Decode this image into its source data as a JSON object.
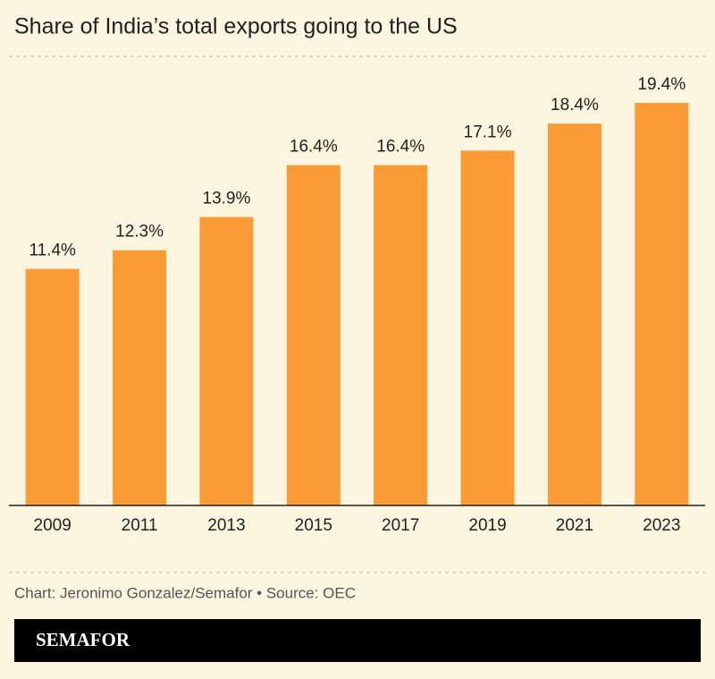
{
  "chart_data": {
    "type": "bar",
    "title": "Share of India’s total exports going to the US",
    "categories": [
      "2009",
      "2011",
      "2013",
      "2015",
      "2017",
      "2019",
      "2021",
      "2023"
    ],
    "values": [
      11.4,
      12.3,
      13.9,
      16.4,
      16.4,
      17.1,
      18.4,
      19.4
    ],
    "value_labels": [
      "11.4%",
      "12.3%",
      "13.9%",
      "16.4%",
      "16.4%",
      "17.1%",
      "18.4%",
      "19.4%"
    ],
    "color": "#fa9b36",
    "source": "Chart: Jeronimo Gonzalez/Semafor • Source: OEC",
    "logo": "SEMAFOR"
  }
}
